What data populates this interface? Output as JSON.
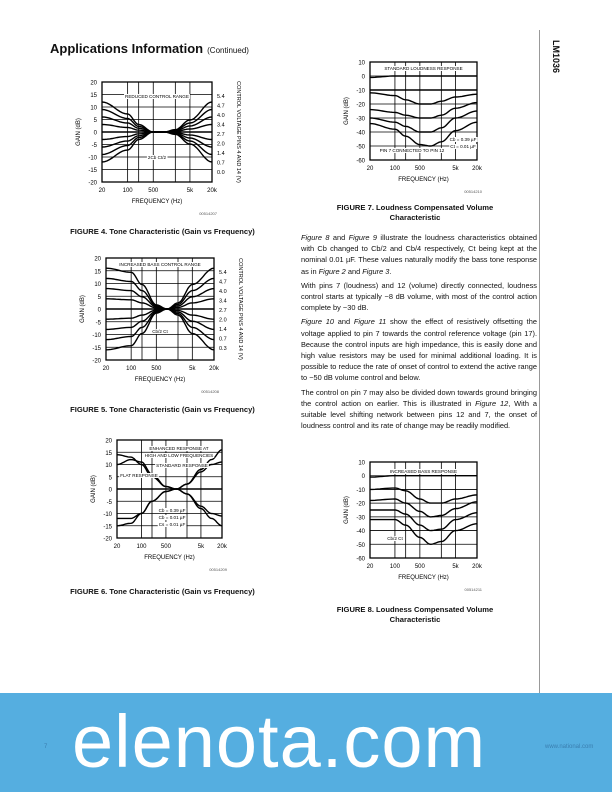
{
  "header": {
    "title": "Applications Information",
    "subtitle": "(Continued)",
    "part_number": "LM1036"
  },
  "figures": [
    {
      "id": "fig4",
      "caption": "FIGURE 4. Tone Characteristic (Gain vs Frequency)",
      "code": "00514207",
      "annotations": [
        "REDUCED CONTROL RANGE",
        "2Cb   Ct/2"
      ],
      "ylabel": "GAIN (dB)",
      "xlabel": "FREQUENCY (Hz)",
      "right_axis_label": "CONTROL VOLTAGE PINS 4 AND 14 (V)",
      "right_ticks": [
        "5.4",
        "4.7",
        "4.0",
        "3.4",
        "2.7",
        "2.0",
        "1.4",
        "0.7",
        "0.0"
      ]
    },
    {
      "id": "fig5",
      "caption": "FIGURE 5. Tone Characteristic (Gain vs Frequency)",
      "code": "00514208",
      "annotations": [
        "INCREASED BASS CONTROL RANGE",
        "Cb/2   Ct"
      ],
      "ylabel": "GAIN (dB)",
      "xlabel": "FREQUENCY (Hz)",
      "right_axis_label": "CONTROL VOLTAGE PINS 4 AND 14 (V)",
      "right_ticks": [
        "5.4",
        "4.7",
        "4.0",
        "3.4",
        "2.7",
        "2.0",
        "1.4",
        "0.7",
        "0.3"
      ]
    },
    {
      "id": "fig6",
      "caption": "FIGURE 6. Tone Characteristic (Gain vs Frequency)",
      "code": "00514209",
      "annotations": [
        "FLAT RESPONSE",
        "ENHANCED RESPONSE AT",
        "HIGH AND LOW FREQUENCIES",
        "STANDARD RESPONSE",
        "Cb = 0.39 µF",
        "Cb = 0.01 µF",
        "Cs = 0.01 µF"
      ],
      "ylabel": "GAIN (dB)",
      "xlabel": "FREQUENCY (Hz)"
    },
    {
      "id": "fig7",
      "caption": "FIGURE 7. Loudness Compensated Volume Characteristic",
      "code": "00514210",
      "annotations": [
        "STANDARD LOUDNESS RESPONSE",
        "PIN 7 CONNECTED TO PIN 12",
        "Cb = 0.39 µF",
        "Ct = 0.01 µF"
      ],
      "ylabel": "GAIN (dB)",
      "xlabel": "FREQUENCY (Hz)"
    },
    {
      "id": "fig8",
      "caption": "FIGURE 8. Loudness Compensated Volume Characteristic",
      "code": "00514211",
      "annotations": [
        "INCREASED BASS RESPONSE",
        "Cb/2   Ct"
      ],
      "ylabel": "GAIN (dB)",
      "xlabel": "FREQUENCY (Hz)"
    }
  ],
  "chart_data": [
    {
      "type": "line",
      "id": "fig4",
      "x": [
        20,
        100,
        200,
        500,
        1000,
        2000,
        5000,
        20000
      ],
      "xticks": [
        "20",
        "100",
        "500",
        "5k",
        "20k"
      ],
      "yticks": [
        "20",
        "15",
        "10",
        "5",
        "0",
        "-5",
        "-10",
        "-15",
        "-20"
      ],
      "ylim": [
        -20,
        20
      ],
      "xscale": "log",
      "grid": true,
      "series": [
        12,
        9,
        6,
        3,
        0,
        -3,
        -6,
        -9,
        -12
      ]
    },
    {
      "type": "line",
      "id": "fig5",
      "x": [
        20,
        100,
        200,
        500,
        1000,
        2000,
        5000,
        20000
      ],
      "xticks": [
        "20",
        "100",
        "500",
        "5k",
        "20k"
      ],
      "yticks": [
        "20",
        "15",
        "10",
        "5",
        "0",
        "-5",
        "-10",
        "-15",
        "-20"
      ],
      "ylim": [
        -20,
        20
      ],
      "xscale": "log",
      "grid": true,
      "series": [
        16,
        12,
        8,
        4,
        0,
        -4,
        -8,
        -12,
        -16
      ]
    },
    {
      "type": "line",
      "id": "fig6",
      "x": [
        20,
        50,
        100,
        200,
        500,
        1000,
        2000,
        5000,
        10000,
        20000
      ],
      "xticks": [
        "20",
        "100",
        "500",
        "5k",
        "20k"
      ],
      "yticks": [
        "20",
        "15",
        "10",
        "5",
        "0",
        "-5",
        "-10",
        "-15",
        "-20"
      ],
      "ylim": [
        -20,
        20
      ],
      "xscale": "log",
      "grid": true,
      "series": [
        [
          14,
          13,
          10,
          5,
          1,
          0,
          2,
          8,
          12,
          16
        ],
        [
          10,
          12,
          11,
          6,
          1,
          0,
          2,
          7,
          10,
          11
        ],
        [
          -12,
          -12,
          -10,
          -5,
          -1,
          0,
          -2,
          -7,
          -10,
          -11
        ],
        [
          -15,
          -14,
          -10,
          -5,
          -1,
          0,
          -2,
          -8,
          -12,
          -15
        ],
        [
          0,
          0,
          0,
          0,
          0,
          0,
          0,
          0,
          0,
          0
        ]
      ]
    },
    {
      "type": "line",
      "id": "fig7",
      "x": [
        20,
        100,
        200,
        500,
        1000,
        2000,
        5000,
        20000
      ],
      "xticks": [
        "20",
        "100",
        "500",
        "5k",
        "20k"
      ],
      "yticks": [
        "10",
        "0",
        "-10",
        "-20",
        "-30",
        "-40",
        "-50",
        "-60"
      ],
      "ylim": [
        -60,
        10
      ],
      "xscale": "log",
      "grid": true,
      "series": [
        [
          -1,
          0,
          0,
          0,
          0,
          0,
          0,
          0
        ],
        [
          -10,
          -10,
          -10,
          -10,
          -10,
          -10,
          -10,
          -10
        ],
        [
          -12,
          -14,
          -17,
          -20,
          -20,
          -18,
          -15,
          -13
        ],
        [
          -24,
          -26,
          -28,
          -30,
          -30,
          -28,
          -23,
          -19
        ],
        [
          -30,
          -33,
          -36,
          -40,
          -40,
          -37,
          -30,
          -25
        ],
        [
          -34,
          -38,
          -43,
          -49,
          -50,
          -47,
          -39,
          -33
        ]
      ]
    },
    {
      "type": "line",
      "id": "fig8",
      "x": [
        20,
        100,
        200,
        500,
        1000,
        2000,
        5000,
        20000
      ],
      "xticks": [
        "20",
        "100",
        "500",
        "5k",
        "20k"
      ],
      "yticks": [
        "10",
        "0",
        "-10",
        "-20",
        "-30",
        "-40",
        "-50",
        "-60"
      ],
      "ylim": [
        -60,
        10
      ],
      "xscale": "log",
      "grid": true,
      "series": [
        [
          -1,
          0,
          0,
          0,
          0,
          0,
          0,
          0
        ],
        [
          -10,
          -9,
          -11,
          -17,
          -20,
          -20,
          -17,
          -14
        ],
        [
          -18,
          -17,
          -20,
          -26,
          -30,
          -29,
          -24,
          -19
        ],
        [
          -25,
          -25,
          -28,
          -36,
          -40,
          -39,
          -32,
          -27
        ],
        [
          -32,
          -32,
          -36,
          -45,
          -50,
          -48,
          -40,
          -35
        ]
      ]
    }
  ],
  "body": {
    "p1_a": "Figure 8",
    "p1_b": " and ",
    "p1_c": "Figure 9",
    "p1_d": " illustrate the loudness characteristics obtained with Cb changed to Cb/2 and Cb/4 respectively, Ct being kept at the nominal 0.01 µF. These values naturally modify the bass tone response as in ",
    "p1_e": "Figure 2",
    "p1_f": " and ",
    "p1_g": "Figure 3",
    "p1_h": ".",
    "p2": "With pins 7 (loudness) and 12 (volume) directly connected, loudness control starts at typically −8 dB volume, with most of the control action complete by −30 dB.",
    "p3_a": "Figure 10",
    "p3_b": " and ",
    "p3_c": "Figure 11",
    "p3_d": " show the effect of resistively offsetting the voltage applied to pin 7 towards the control reference voltage (pin 17). Because the control inputs are high impedance, this is easily done and high value resistors may be used for minimal additional loading. It is possible to reduce the rate of onset of control to extend the active range to −50 dB volume control and below.",
    "p4_a": "The control on pin 7 may also be divided down towards ground bringing the control action on earlier. This is illustrated in ",
    "p4_b": "Figure 12",
    "p4_c": ", With a suitable level shifting network between pins 12 and 7, the onset of loudness control and its rate of change may be readily modified."
  },
  "footer": {
    "page": "7",
    "url": "www.national.com"
  },
  "watermark": {
    "text": "elenota.com",
    "color": "#55aee0"
  }
}
